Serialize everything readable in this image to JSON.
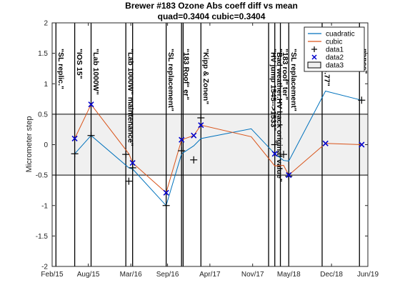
{
  "chart_data": {
    "type": "line",
    "title": "Brewer  #183 Ozone Abs coeff diff vs mean",
    "subtitle": "quad=0.3404 cubic=0.3404",
    "ylabel": "Micrometer step",
    "xlabel": "",
    "ylim": [
      -2,
      2
    ],
    "xlim": [
      "2015-02-01",
      "2019-06-01"
    ],
    "x_ticks": [
      {
        "date": "2015-02-01",
        "label": "Feb/15"
      },
      {
        "date": "2015-08-01",
        "label": "Aug/15"
      },
      {
        "date": "2016-03-01",
        "label": "Mar/16"
      },
      {
        "date": "2016-09-01",
        "label": "Sep/16"
      },
      {
        "date": "2017-04-01",
        "label": "Apr/17"
      },
      {
        "date": "2017-11-01",
        "label": "Nov/17"
      },
      {
        "date": "2018-05-01",
        "label": "May/18"
      },
      {
        "date": "2018-12-01",
        "label": "Dec/18"
      },
      {
        "date": "2019-06-01",
        "label": "Jun/19"
      }
    ],
    "y_ticks": [
      -2,
      -1.5,
      -1,
      -0.5,
      0,
      0.5,
      1,
      1.5,
      2
    ],
    "band": {
      "name": "data3",
      "y0": -0.5,
      "y1": 0.5,
      "color": "#f0f0f0"
    },
    "legend_position": "top-right",
    "series": [
      {
        "name": "cuadratic",
        "color": "#0072BD",
        "x": [
          "2015-05-25",
          "2015-08-15",
          "2016-02-20",
          "2016-03-10",
          "2016-08-25",
          "2016-11-10",
          "2017-01-10",
          "2017-02-15",
          "2017-10-25",
          "2018-02-20",
          "2018-04-05",
          "2018-05-01",
          "2018-11-01",
          "2019-05-01"
        ],
        "y": [
          -0.15,
          0.15,
          -0.38,
          -0.4,
          -1.0,
          -0.15,
          -0.02,
          0.1,
          0.26,
          -0.15,
          -0.26,
          -0.27,
          0.88,
          0.73
        ]
      },
      {
        "name": "cubic",
        "color": "#D95319",
        "x": [
          "2015-05-25",
          "2015-08-15",
          "2016-02-20",
          "2016-03-10",
          "2016-08-25",
          "2016-11-10",
          "2017-01-10",
          "2017-02-15",
          "2017-10-25",
          "2018-02-20",
          "2018-04-05",
          "2018-05-01",
          "2018-11-01",
          "2019-05-01"
        ],
        "y": [
          0.1,
          0.66,
          -0.15,
          -0.3,
          -0.79,
          0.08,
          0.15,
          0.32,
          0.13,
          -0.35,
          -0.34,
          -0.5,
          0.02,
          0.0
        ]
      },
      {
        "name": "data1",
        "marker": "+",
        "color": "#000000",
        "x": [
          "2015-05-25",
          "2015-08-15",
          "2016-02-05",
          "2016-02-20",
          "2016-03-10",
          "2016-08-25",
          "2016-11-10",
          "2017-01-10",
          "2017-02-15",
          "2018-02-20",
          "2018-04-05",
          "2018-05-01",
          "2019-05-01"
        ],
        "y": [
          -0.15,
          0.15,
          -0.16,
          -0.6,
          -0.38,
          -1.0,
          -0.1,
          -0.25,
          0.44,
          0.0,
          -0.16,
          -0.52,
          0.73
        ]
      },
      {
        "name": "data2",
        "marker": "x",
        "color": "#0000CC",
        "x": [
          "2015-05-25",
          "2015-08-15",
          "2016-03-10",
          "2016-08-25",
          "2016-11-10",
          "2017-01-10",
          "2017-02-15",
          "2018-02-20",
          "2018-05-01",
          "2018-11-01",
          "2019-05-01"
        ],
        "y": [
          0.1,
          0.66,
          -0.3,
          -0.79,
          0.08,
          0.15,
          0.32,
          -0.15,
          -0.5,
          0.02,
          0.0
        ]
      }
    ],
    "events": [
      {
        "date": "2015-02-20",
        "label": "\"SL replic.\""
      },
      {
        "date": "2015-05-25",
        "label": "\"IOS 15\""
      },
      {
        "date": "2015-08-15",
        "label": "\"Lab  1000W\""
      },
      {
        "date": "2016-02-05",
        "label": "\"Lab 1000W\" maintenance\""
      },
      {
        "date": "2016-03-10",
        "label": ""
      },
      {
        "date": "2016-08-25",
        "label": "\"SL replacement\""
      },
      {
        "date": "2016-11-10",
        "label": "\"183 Roof\" er\""
      },
      {
        "date": "2016-11-18",
        "label": ""
      },
      {
        "date": "2017-02-15",
        "label": "\"Kipp & Zonen\""
      },
      {
        "date": "2018-01-20",
        "label": "\"HV jump  1545-->1533\""
      },
      {
        "date": "2018-02-20",
        "label": "\"Bad weather.HV back original value\""
      },
      {
        "date": "2018-03-20",
        "label": "\"183 roof\" ter\""
      },
      {
        "date": "2018-05-01",
        "label": "\"SL replacement\""
      },
      {
        "date": "2018-10-15",
        "label": "ck to 3.77\""
      },
      {
        "date": "2019-04-20",
        "label": "nance\""
      }
    ]
  }
}
